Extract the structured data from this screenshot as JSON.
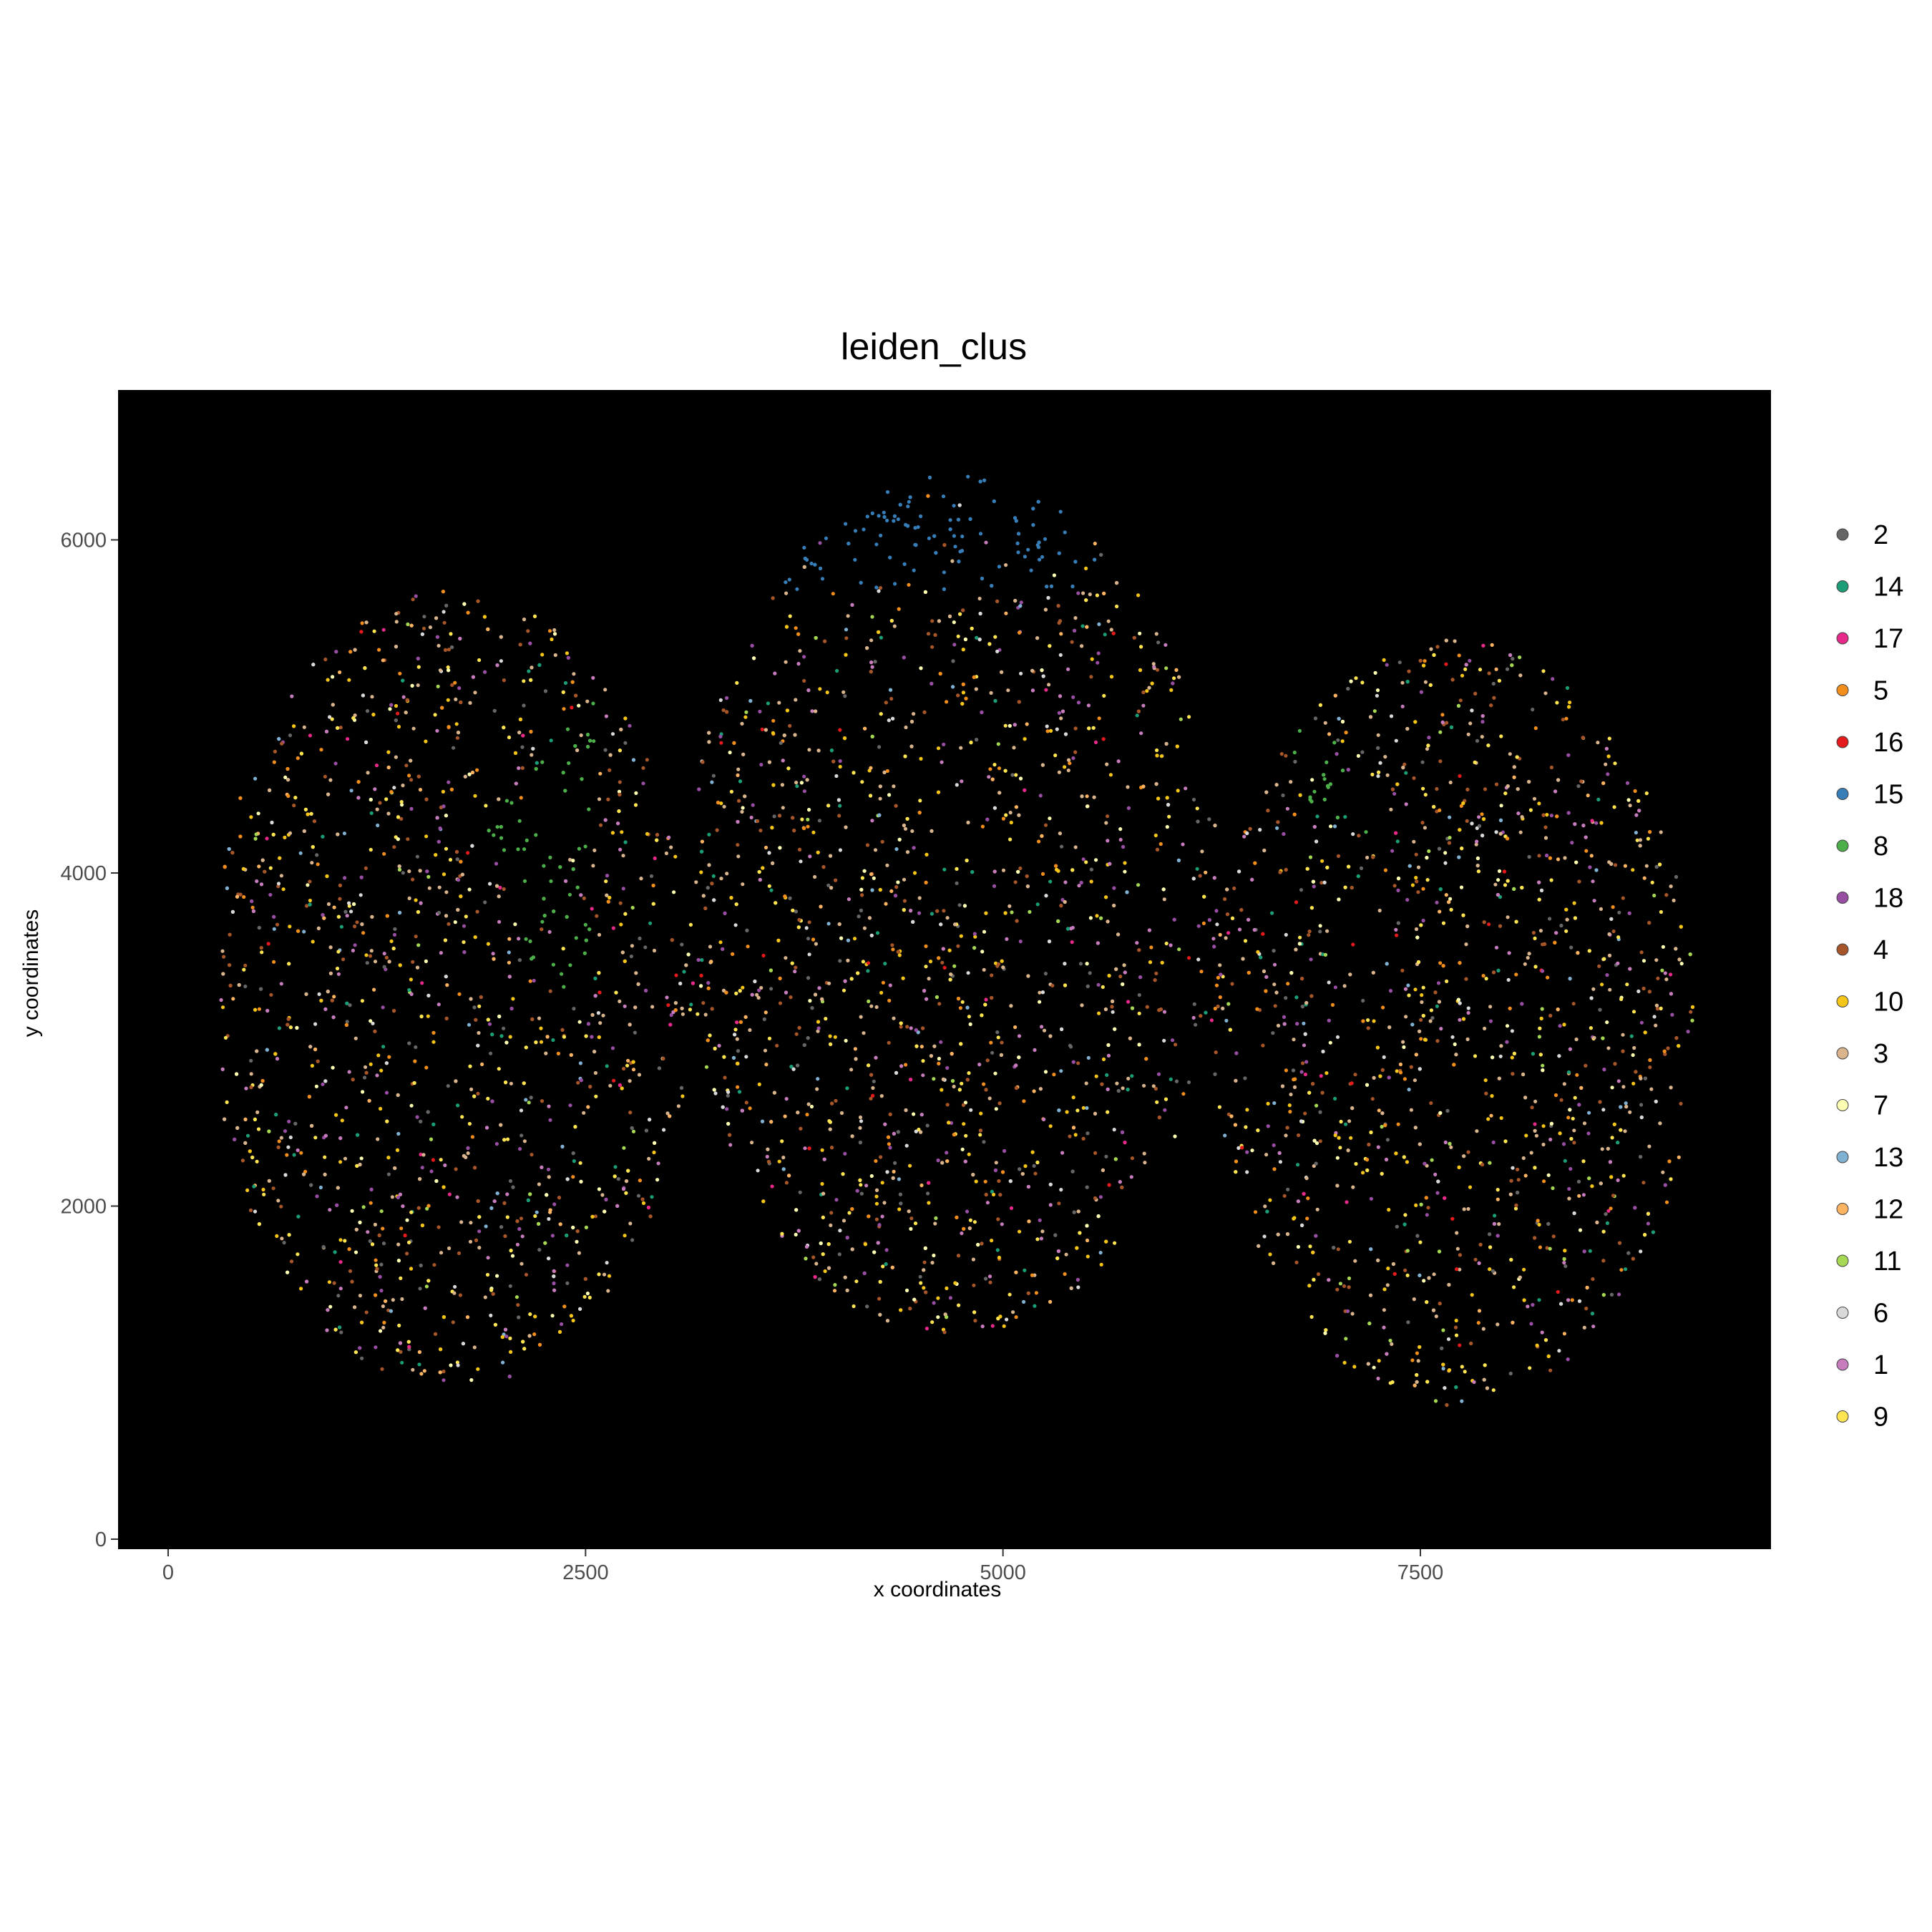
{
  "chart_data": {
    "type": "scatter",
    "title": "leiden_clus",
    "xlabel": "x coordinates",
    "ylabel": "y coordinates",
    "xlim": [
      -300,
      9600
    ],
    "ylim": [
      -60,
      6900
    ],
    "x_ticks": [
      0,
      2500,
      5000,
      7500
    ],
    "y_ticks": [
      0,
      2000,
      4000,
      6000
    ],
    "x_tick_labels": [
      "0",
      "2500",
      "5000",
      "7500"
    ],
    "y_tick_labels": [
      "0",
      "2000",
      "4000",
      "6000"
    ],
    "grid": false,
    "panel_background": "#000000",
    "legend_position": "right",
    "legend": [
      {
        "name": "2",
        "color": "#666666"
      },
      {
        "name": "14",
        "color": "#1B9E77"
      },
      {
        "name": "17",
        "color": "#E7298A"
      },
      {
        "name": "5",
        "color": "#F28E1C"
      },
      {
        "name": "16",
        "color": "#E41A1C"
      },
      {
        "name": "15",
        "color": "#377EB8"
      },
      {
        "name": "8",
        "color": "#4DAF4A"
      },
      {
        "name": "18",
        "color": "#984EA3"
      },
      {
        "name": "4",
        "color": "#A65628"
      },
      {
        "name": "10",
        "color": "#F5C518"
      },
      {
        "name": "3",
        "color": "#D9B48C"
      },
      {
        "name": "7",
        "color": "#FFFFB3"
      },
      {
        "name": "13",
        "color": "#80B1D3"
      },
      {
        "name": "12",
        "color": "#FDB462"
      },
      {
        "name": "11",
        "color": "#A6D854"
      },
      {
        "name": "6",
        "color": "#D9D9D9"
      },
      {
        "name": "1",
        "color": "#C77CBE"
      },
      {
        "name": "9",
        "color": "#FFE552"
      }
    ],
    "regions": [
      {
        "cluster": "15",
        "x": [
          3400,
          5400,
          5600,
          3600
        ],
        "y": [
          6450,
          6500,
          5700,
          5700
        ]
      },
      {
        "cluster": "8",
        "x": [
          1900,
          2600,
          2500,
          2200
        ],
        "y": [
          4300,
          5100,
          3200,
          3400
        ]
      },
      {
        "cluster": "8",
        "x": [
          6700,
          7000,
          7200,
          6800
        ],
        "y": [
          5000,
          4800,
          4200,
          4400
        ]
      }
    ]
  }
}
